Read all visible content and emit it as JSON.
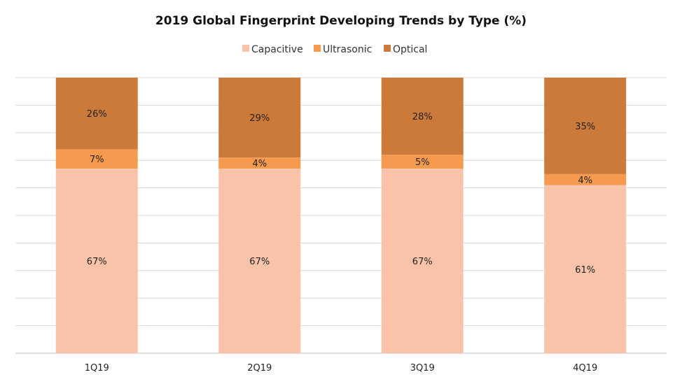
{
  "chart_data": {
    "type": "bar",
    "stacked": true,
    "title": "2019 Global Fingerprint Developing Trends by Type (%)",
    "categories": [
      "1Q19",
      "2Q19",
      "3Q19",
      "4Q19"
    ],
    "series": [
      {
        "name": "Capacitive",
        "color": "#f8c3a8",
        "values": [
          67,
          67,
          67,
          61
        ],
        "labels": [
          "67%",
          "67%",
          "67%",
          "61%"
        ]
      },
      {
        "name": "Ultrasonic",
        "color": "#f59a4f",
        "values": [
          7,
          4,
          5,
          4
        ],
        "labels": [
          "7%",
          "4%",
          "5%",
          "4%"
        ]
      },
      {
        "name": "Optical",
        "color": "#cc7a3a",
        "values": [
          26,
          29,
          28,
          35
        ],
        "labels": [
          "26%",
          "29%",
          "28%",
          "35%"
        ]
      }
    ],
    "ylim": [
      0,
      100
    ],
    "grid": true,
    "legend_position": "top-center"
  }
}
